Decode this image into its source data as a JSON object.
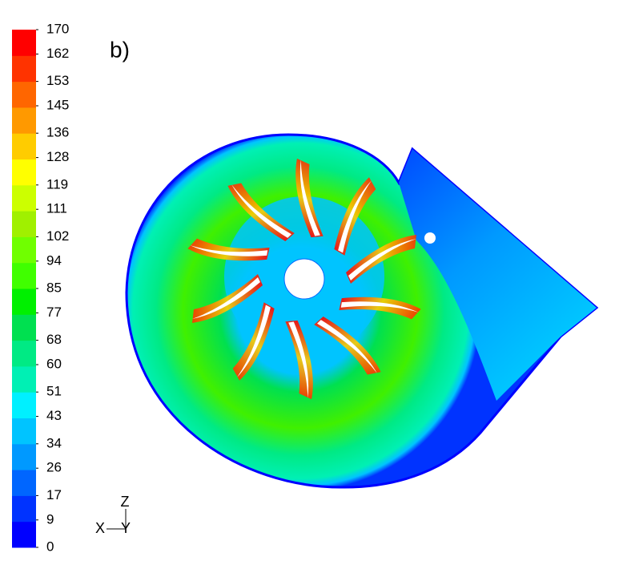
{
  "chart_data": {
    "type": "contour",
    "panel_label": "b)",
    "clim": [
      0,
      170
    ],
    "colorbar_ticks": [
      0,
      9,
      17,
      26,
      34,
      43,
      51,
      60,
      68,
      77,
      85,
      94,
      102,
      111,
      119,
      128,
      136,
      145,
      153,
      162,
      170
    ],
    "colors": [
      "#0000ff",
      "#0033ff",
      "#0066ff",
      "#0099ff",
      "#00c4ff",
      "#00f0ff",
      "#00f0b4",
      "#00ea84",
      "#00e050",
      "#00f000",
      "#40ff00",
      "#70ff00",
      "#a0f000",
      "#ccff00",
      "#ffff00",
      "#ffcc00",
      "#ff9900",
      "#ff6600",
      "#ff3300",
      "#ff0000"
    ],
    "axes_triad": {
      "x": "X",
      "y": "Y",
      "z": "Z"
    }
  }
}
